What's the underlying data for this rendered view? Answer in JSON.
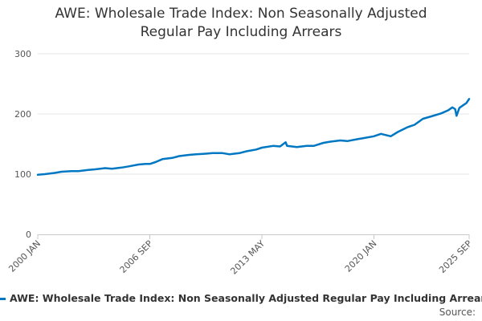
{
  "chart_data": {
    "type": "line",
    "title_lines": [
      "AWE: Wholesale Trade Index: Non Seasonally Adjusted",
      "Regular Pay Including Arrears"
    ],
    "xlabel": "",
    "ylabel": "",
    "x_start": "2000 JAN",
    "x_end": "2025 SEP",
    "x_tick_labels": [
      "2000 JAN",
      "2006 SEP",
      "2013 MAY",
      "2020 JAN",
      "2025 SEP"
    ],
    "ylim": [
      0,
      300
    ],
    "y_ticks": [
      0,
      100,
      200,
      300
    ],
    "grid": true,
    "color": "#0077c2",
    "series": [
      {
        "name": "AWE: Wholesale Trade Index: Non Seasonally Adjusted Regular Pay Including Arrears",
        "points": [
          [
            "2000-01",
            99
          ],
          [
            "2000-06",
            100
          ],
          [
            "2001-01",
            102
          ],
          [
            "2001-06",
            104
          ],
          [
            "2002-01",
            105
          ],
          [
            "2002-06",
            105
          ],
          [
            "2003-01",
            107
          ],
          [
            "2003-06",
            108
          ],
          [
            "2004-01",
            110
          ],
          [
            "2004-06",
            109
          ],
          [
            "2005-01",
            111
          ],
          [
            "2005-06",
            113
          ],
          [
            "2006-01",
            116
          ],
          [
            "2006-06",
            117
          ],
          [
            "2006-09",
            117
          ],
          [
            "2007-01",
            120
          ],
          [
            "2007-06",
            125
          ],
          [
            "2008-01",
            127
          ],
          [
            "2008-06",
            130
          ],
          [
            "2009-01",
            132
          ],
          [
            "2009-06",
            133
          ],
          [
            "2010-01",
            134
          ],
          [
            "2010-06",
            135
          ],
          [
            "2011-01",
            135
          ],
          [
            "2011-06",
            133
          ],
          [
            "2012-01",
            135
          ],
          [
            "2012-06",
            138
          ],
          [
            "2013-01",
            141
          ],
          [
            "2013-05",
            144
          ],
          [
            "2014-01",
            147
          ],
          [
            "2014-06",
            146
          ],
          [
            "2014-10",
            153
          ],
          [
            "2014-11",
            147
          ],
          [
            "2015-06",
            145
          ],
          [
            "2016-01",
            147
          ],
          [
            "2016-06",
            147
          ],
          [
            "2017-01",
            152
          ],
          [
            "2017-06",
            154
          ],
          [
            "2018-01",
            156
          ],
          [
            "2018-06",
            155
          ],
          [
            "2019-01",
            158
          ],
          [
            "2019-06",
            160
          ],
          [
            "2020-01",
            163
          ],
          [
            "2020-06",
            167
          ],
          [
            "2021-01",
            163
          ],
          [
            "2021-06",
            170
          ],
          [
            "2022-01",
            178
          ],
          [
            "2022-06",
            182
          ],
          [
            "2022-12",
            192
          ],
          [
            "2023-06",
            196
          ],
          [
            "2024-01",
            201
          ],
          [
            "2024-06",
            206
          ],
          [
            "2024-09",
            211
          ],
          [
            "2024-11",
            208
          ],
          [
            "2024-12",
            197
          ],
          [
            "2025-02",
            210
          ],
          [
            "2025-05",
            215
          ],
          [
            "2025-07",
            218
          ],
          [
            "2025-09",
            225
          ]
        ]
      }
    ]
  },
  "source_label": "Source:"
}
